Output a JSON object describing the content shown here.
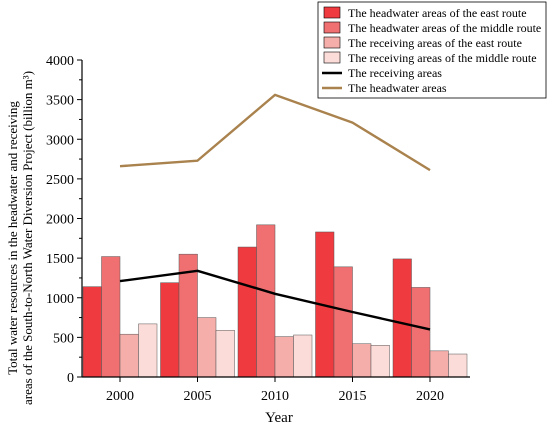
{
  "chart_data": {
    "type": "bar",
    "categories": [
      "2000",
      "2005",
      "2010",
      "2015",
      "2020"
    ],
    "xlabel": "Year",
    "ylabel": "Total water resources in the headwater and receiving areas of the South-to-North Water Diversion Project (billion m³)",
    "ylabel_lines": [
      "Total water resources in the headwater and receiving",
      "areas of the South-to-North Water Diversion Project (billion m³)"
    ],
    "ylim": [
      0,
      4000
    ],
    "yticks": [
      "0",
      "500",
      "1000",
      "1500",
      "2000",
      "2500",
      "3000",
      "3500",
      "4000"
    ],
    "grid": false,
    "legend_position": "top-right",
    "series": [
      {
        "name": "The headwater areas of the east route",
        "kind": "bar",
        "color": "#ef3a3f",
        "values": [
          1140,
          1190,
          1640,
          1830,
          1490
        ]
      },
      {
        "name": "The headwater areas of the middle route",
        "kind": "bar",
        "color": "#f07072",
        "values": [
          1520,
          1550,
          1920,
          1390,
          1130
        ]
      },
      {
        "name": "The receiving areas of the east route",
        "kind": "bar",
        "color": "#f5aeaa",
        "values": [
          540,
          750,
          510,
          420,
          330
        ]
      },
      {
        "name": "The receiving areas of the middle route",
        "kind": "bar",
        "color": "#fbdcd8",
        "values": [
          670,
          590,
          530,
          400,
          290
        ]
      },
      {
        "name": "The receiving areas",
        "kind": "line",
        "color": "#000000",
        "values": [
          1210,
          1340,
          1050,
          820,
          600
        ]
      },
      {
        "name": "The headwater areas",
        "kind": "line",
        "color": "#a9824d",
        "values": [
          2660,
          2730,
          3560,
          3210,
          2610
        ]
      }
    ]
  }
}
